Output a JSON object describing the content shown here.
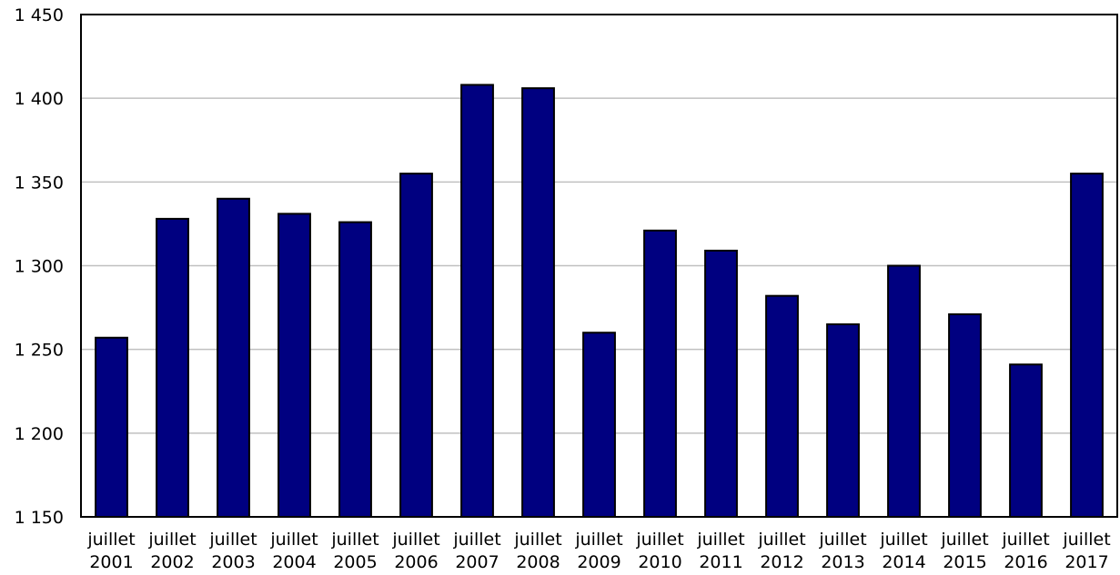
{
  "chart_data": {
    "type": "bar",
    "title": "",
    "xlabel": "",
    "ylabel": "",
    "categories": [
      [
        "juillet",
        "2001"
      ],
      [
        "juillet",
        "2002"
      ],
      [
        "juillet",
        "2003"
      ],
      [
        "juillet",
        "2004"
      ],
      [
        "juillet",
        "2005"
      ],
      [
        "juillet",
        "2006"
      ],
      [
        "juillet",
        "2007"
      ],
      [
        "juillet",
        "2008"
      ],
      [
        "juillet",
        "2009"
      ],
      [
        "juillet",
        "2010"
      ],
      [
        "juillet",
        "2011"
      ],
      [
        "juillet",
        "2012"
      ],
      [
        "juillet",
        "2013"
      ],
      [
        "juillet",
        "2014"
      ],
      [
        "juillet",
        "2015"
      ],
      [
        "juillet",
        "2016"
      ],
      [
        "juillet",
        "2017"
      ]
    ],
    "values": [
      1257,
      1328,
      1340,
      1331,
      1326,
      1355,
      1408,
      1406,
      1260,
      1321,
      1309,
      1282,
      1265,
      1300,
      1271,
      1241,
      1355
    ],
    "ylim": [
      1150,
      1450
    ],
    "yticks": [
      1150,
      1200,
      1250,
      1300,
      1350,
      1400,
      1450
    ],
    "ytick_labels": [
      "1 150",
      "1 200",
      "1 250",
      "1 300",
      "1 350",
      "1 400",
      "1 450"
    ],
    "grid": true,
    "legend": "none",
    "colors": {
      "bar_fill": "#000080",
      "bar_stroke": "#000000",
      "grid": "#c0c0c0",
      "axis": "#000000"
    }
  }
}
